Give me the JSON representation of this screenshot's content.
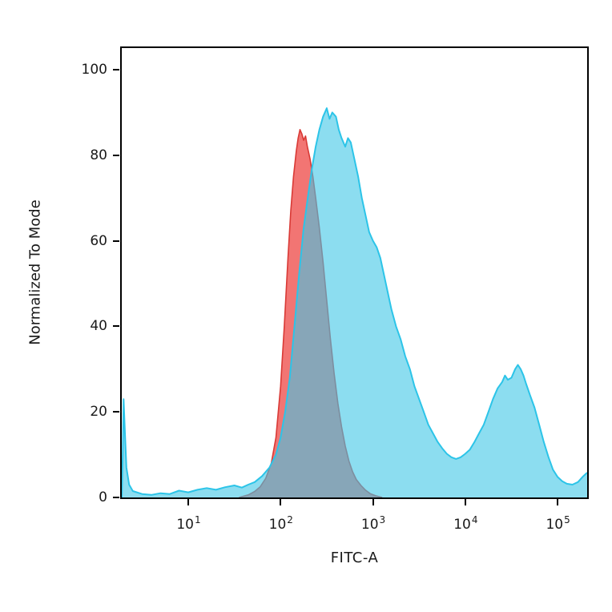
{
  "figure": {
    "background": "#ffffff",
    "border_color": "#000000"
  },
  "chart_data": {
    "type": "area",
    "title": "",
    "xlabel": "FITC-A",
    "ylabel": "Normalized To Mode",
    "x_scale": "log10",
    "xlim_log10": [
      0.28,
      5.32
    ],
    "ylim": [
      0,
      100
    ],
    "grid": false,
    "legend": "none",
    "y_ticks": [
      0,
      20,
      40,
      60,
      80,
      100
    ],
    "x_ticks": [
      {
        "base": "10",
        "exp": "1",
        "log10": 1
      },
      {
        "base": "10",
        "exp": "2",
        "log10": 2
      },
      {
        "base": "10",
        "exp": "3",
        "log10": 3
      },
      {
        "base": "10",
        "exp": "4",
        "log10": 4
      },
      {
        "base": "10",
        "exp": "5",
        "log10": 5
      }
    ],
    "series": [
      {
        "name": "red-control-histogram",
        "fill": "rgba(239,83,80,0.8)",
        "stroke": "#d93a36",
        "stroke_width": 1.6,
        "points": [
          [
            1.55,
            0
          ],
          [
            1.65,
            0.6
          ],
          [
            1.72,
            1.4
          ],
          [
            1.78,
            2.5
          ],
          [
            1.84,
            4.5
          ],
          [
            1.9,
            8
          ],
          [
            1.95,
            14
          ],
          [
            2.0,
            26
          ],
          [
            2.04,
            40
          ],
          [
            2.08,
            56
          ],
          [
            2.11,
            67
          ],
          [
            2.14,
            75
          ],
          [
            2.17,
            81
          ],
          [
            2.19,
            84
          ],
          [
            2.21,
            86
          ],
          [
            2.23,
            85
          ],
          [
            2.25,
            83.5
          ],
          [
            2.27,
            84.5
          ],
          [
            2.29,
            82
          ],
          [
            2.32,
            79
          ],
          [
            2.35,
            75
          ],
          [
            2.38,
            70
          ],
          [
            2.42,
            63
          ],
          [
            2.46,
            55
          ],
          [
            2.5,
            46
          ],
          [
            2.54,
            37
          ],
          [
            2.58,
            29
          ],
          [
            2.62,
            22
          ],
          [
            2.66,
            16.5
          ],
          [
            2.7,
            12
          ],
          [
            2.74,
            8.5
          ],
          [
            2.78,
            6
          ],
          [
            2.82,
            4.2
          ],
          [
            2.87,
            2.8
          ],
          [
            2.92,
            1.7
          ],
          [
            2.97,
            0.9
          ],
          [
            3.03,
            0.4
          ],
          [
            3.1,
            0
          ]
        ]
      },
      {
        "name": "cyan-test-histogram",
        "fill": "rgba(64,199,230,0.6)",
        "stroke": "#2cc4e8",
        "stroke_width": 2,
        "points": [
          [
            0.28,
            0
          ],
          [
            0.29,
            10
          ],
          [
            0.3,
            23
          ],
          [
            0.315,
            15
          ],
          [
            0.33,
            7
          ],
          [
            0.36,
            3
          ],
          [
            0.4,
            1.5
          ],
          [
            0.5,
            0.8
          ],
          [
            0.6,
            0.6
          ],
          [
            0.7,
            1.0
          ],
          [
            0.8,
            0.8
          ],
          [
            0.9,
            1.6
          ],
          [
            1.0,
            1.2
          ],
          [
            1.1,
            1.8
          ],
          [
            1.2,
            2.2
          ],
          [
            1.3,
            1.8
          ],
          [
            1.4,
            2.4
          ],
          [
            1.5,
            2.8
          ],
          [
            1.58,
            2.3
          ],
          [
            1.65,
            3.0
          ],
          [
            1.72,
            3.6
          ],
          [
            1.8,
            5.0
          ],
          [
            1.88,
            7.0
          ],
          [
            1.95,
            10
          ],
          [
            2.0,
            14
          ],
          [
            2.05,
            20
          ],
          [
            2.1,
            28
          ],
          [
            2.15,
            40
          ],
          [
            2.2,
            52
          ],
          [
            2.25,
            63
          ],
          [
            2.3,
            71
          ],
          [
            2.34,
            77
          ],
          [
            2.38,
            82
          ],
          [
            2.42,
            86
          ],
          [
            2.46,
            89
          ],
          [
            2.5,
            91
          ],
          [
            2.53,
            88.5
          ],
          [
            2.56,
            90
          ],
          [
            2.6,
            89
          ],
          [
            2.63,
            86
          ],
          [
            2.66,
            84
          ],
          [
            2.7,
            82
          ],
          [
            2.73,
            84
          ],
          [
            2.76,
            83
          ],
          [
            2.8,
            79
          ],
          [
            2.84,
            75
          ],
          [
            2.88,
            70
          ],
          [
            2.92,
            66
          ],
          [
            2.96,
            62
          ],
          [
            3.0,
            60
          ],
          [
            3.04,
            58.5
          ],
          [
            3.08,
            56
          ],
          [
            3.12,
            52
          ],
          [
            3.16,
            48
          ],
          [
            3.2,
            44
          ],
          [
            3.25,
            40
          ],
          [
            3.3,
            37
          ],
          [
            3.35,
            33
          ],
          [
            3.4,
            30
          ],
          [
            3.45,
            26
          ],
          [
            3.5,
            23
          ],
          [
            3.55,
            20
          ],
          [
            3.6,
            17
          ],
          [
            3.65,
            15
          ],
          [
            3.7,
            13
          ],
          [
            3.75,
            11.5
          ],
          [
            3.8,
            10.2
          ],
          [
            3.85,
            9.4
          ],
          [
            3.9,
            9.0
          ],
          [
            3.95,
            9.4
          ],
          [
            4.0,
            10.2
          ],
          [
            4.05,
            11.2
          ],
          [
            4.1,
            13
          ],
          [
            4.15,
            15
          ],
          [
            4.2,
            17
          ],
          [
            4.25,
            20
          ],
          [
            4.3,
            23
          ],
          [
            4.35,
            25.5
          ],
          [
            4.4,
            27
          ],
          [
            4.43,
            28.5
          ],
          [
            4.46,
            27.5
          ],
          [
            4.5,
            28
          ],
          [
            4.54,
            30
          ],
          [
            4.57,
            31
          ],
          [
            4.6,
            30
          ],
          [
            4.63,
            28.5
          ],
          [
            4.66,
            26.5
          ],
          [
            4.7,
            24
          ],
          [
            4.75,
            21
          ],
          [
            4.8,
            17
          ],
          [
            4.85,
            13
          ],
          [
            4.9,
            9.5
          ],
          [
            4.95,
            6.5
          ],
          [
            5.0,
            4.8
          ],
          [
            5.05,
            3.8
          ],
          [
            5.1,
            3.2
          ],
          [
            5.16,
            3.0
          ],
          [
            5.22,
            3.6
          ],
          [
            5.27,
            4.8
          ],
          [
            5.32,
            5.8
          ]
        ]
      }
    ]
  }
}
